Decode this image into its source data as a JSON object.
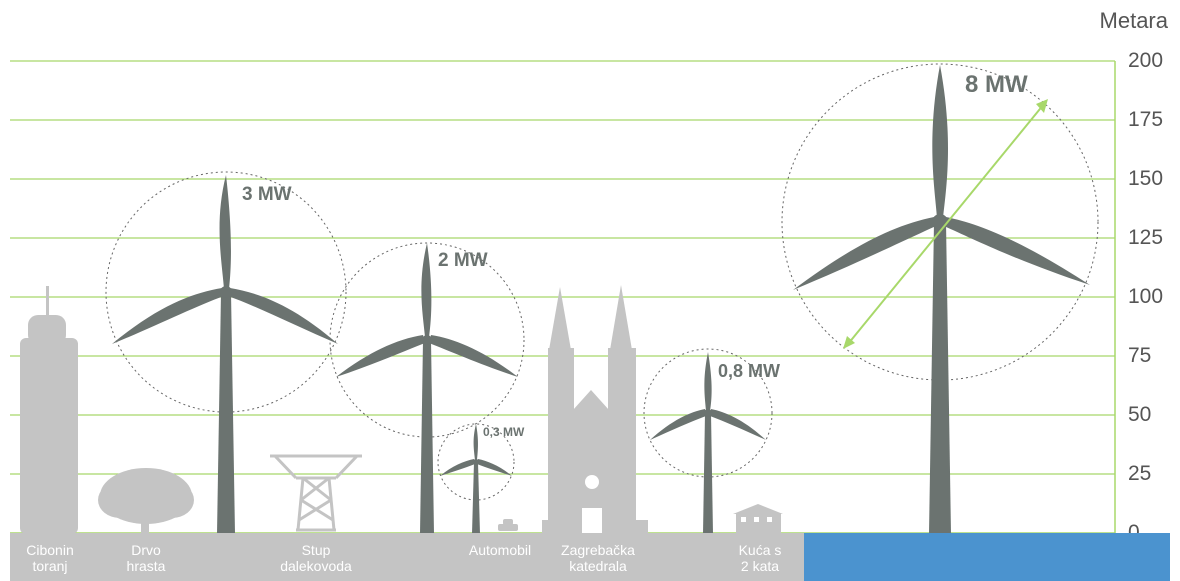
{
  "axis": {
    "unit_label": "Metara",
    "ticks": [
      "200",
      "175",
      "150",
      "125",
      "100",
      "75",
      "50",
      "25",
      "0"
    ],
    "tick_values": [
      200,
      175,
      150,
      125,
      100,
      75,
      50,
      25,
      0
    ]
  },
  "turbines": [
    {
      "id": "3mw",
      "label": "3 MW"
    },
    {
      "id": "2mw",
      "label": "2 MW"
    },
    {
      "id": "03mw",
      "label": "0,3 MW"
    },
    {
      "id": "08mw",
      "label": "0,8 MW"
    },
    {
      "id": "8mw",
      "label": "8 MW"
    }
  ],
  "ground_labels": [
    {
      "line1": "Cibonin",
      "line2": "toranj"
    },
    {
      "line1": "Drvo",
      "line2": "hrasta"
    },
    {
      "line1": "Stup",
      "line2": "dalekovoda"
    },
    {
      "line1": "Automobil",
      "line2": ""
    },
    {
      "line1": "Zagrebačka",
      "line2": "katedrala"
    },
    {
      "line1": "Kuća s",
      "line2": "2 kata"
    }
  ],
  "colors": {
    "grid": "#a8d86a",
    "turbine": "#6b7370",
    "silhouette": "#c4c4c4",
    "ground": "#c4c4c4",
    "water": "#4b93cf",
    "arrow": "#a8d86a"
  }
}
